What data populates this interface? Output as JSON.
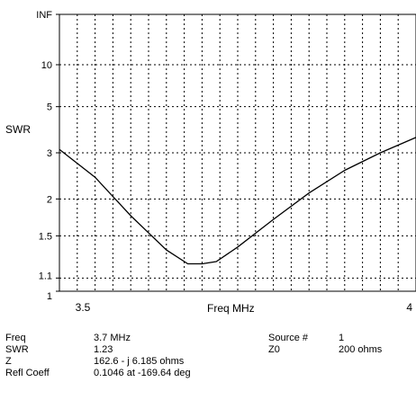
{
  "chart_data": {
    "type": "line",
    "ylabel": "SWR",
    "xlabel": "Freq MHz",
    "x_tick_labels": [
      "3.5",
      "4"
    ],
    "xlim": [
      3.5,
      4.0
    ],
    "y_scale": "swr",
    "y_tick_labels": [
      "INF",
      "10",
      "5",
      "3",
      "2",
      "1.5",
      "1.1",
      "1"
    ],
    "y_tick_values": [
      null,
      10,
      5,
      3,
      2,
      1.5,
      1.1,
      1
    ],
    "grid": true,
    "series": [
      {
        "x": [
          3.5,
          3.55,
          3.6,
          3.65,
          3.68,
          3.7,
          3.72,
          3.75,
          3.8,
          3.85,
          3.9,
          3.95,
          4.0
        ],
        "y": [
          3.1,
          2.4,
          1.75,
          1.35,
          1.22,
          1.22,
          1.24,
          1.38,
          1.7,
          2.1,
          2.55,
          3.0,
          3.5
        ]
      }
    ]
  },
  "readout": {
    "freq_label": "Freq",
    "freq_value": "3.7 MHz",
    "swr_label": "SWR",
    "swr_value": "1.23",
    "z_label": "Z",
    "z_value": "162.6 - j 6.185 ohms",
    "refl_label": "Refl Coeff",
    "refl_value": "0.1046 at -169.64 deg",
    "source_label": "Source #",
    "source_value": "1",
    "z0_label": "Z0",
    "z0_value": "200 ohms"
  }
}
